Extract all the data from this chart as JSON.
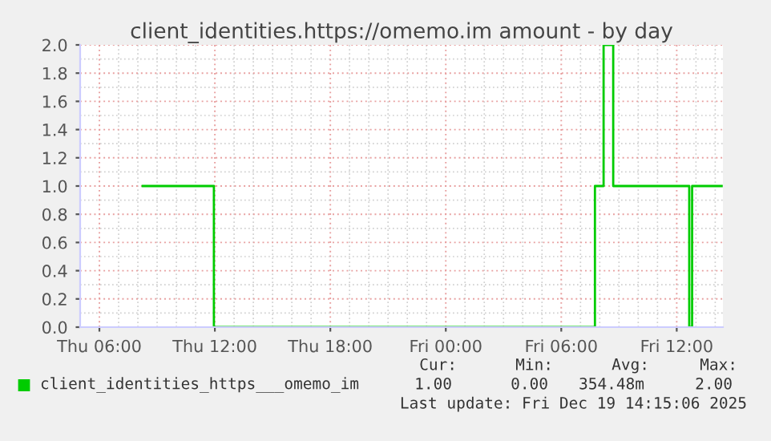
{
  "chart_data": {
    "type": "step",
    "title": "client_identities.https://omemo.im amount - by day",
    "x": [
      "2025-12-18T08:15",
      "2025-12-18T11:54",
      "2025-12-18T11:57",
      "2025-12-19T07:36",
      "2025-12-19T07:45",
      "2025-12-19T08:12",
      "2025-12-19T08:42",
      "2025-12-19T12:36",
      "2025-12-19T12:39",
      "2025-12-19T12:48",
      "2025-12-19T14:20"
    ],
    "series": [
      {
        "name": "client_identities_https___omemo_im",
        "color": "#00cc00",
        "values": [
          1,
          1,
          0,
          0,
          1,
          2,
          1,
          1,
          0,
          1,
          1
        ]
      }
    ],
    "xlim": [
      "2025-12-18T05:00",
      "2025-12-19T14:24"
    ],
    "xticks": [
      {
        "value": "2025-12-18T06:00",
        "label": "Thu 06:00"
      },
      {
        "value": "2025-12-18T12:00",
        "label": "Thu 12:00"
      },
      {
        "value": "2025-12-18T18:00",
        "label": "Thu 18:00"
      },
      {
        "value": "2025-12-19T00:00",
        "label": "Fri 00:00"
      },
      {
        "value": "2025-12-19T06:00",
        "label": "Fri 06:00"
      },
      {
        "value": "2025-12-19T12:00",
        "label": "Fri 12:00"
      }
    ],
    "ylim": [
      0,
      2.0
    ],
    "yticks": [
      {
        "value": 0,
        "label": "0.0"
      },
      {
        "value": 0.2,
        "label": "0.2"
      },
      {
        "value": 0.4,
        "label": "0.4"
      },
      {
        "value": 0.6,
        "label": "0.6"
      },
      {
        "value": 0.8,
        "label": "0.8"
      },
      {
        "value": 1.0,
        "label": "1.0"
      },
      {
        "value": 1.2,
        "label": "1.2"
      },
      {
        "value": 1.4,
        "label": "1.4"
      },
      {
        "value": 1.6,
        "label": "1.6"
      },
      {
        "value": 1.8,
        "label": "1.8"
      },
      {
        "value": 2.0,
        "label": "2.0"
      }
    ],
    "grid": true,
    "legend": "bottom",
    "annotations": [
      "Cur:",
      "Min:",
      "Avg:",
      "Max:",
      "1.00",
      "0.00",
      "354.48m",
      "2.00",
      "Last update: Fri Dec 19 14:15:06 2025"
    ]
  }
}
